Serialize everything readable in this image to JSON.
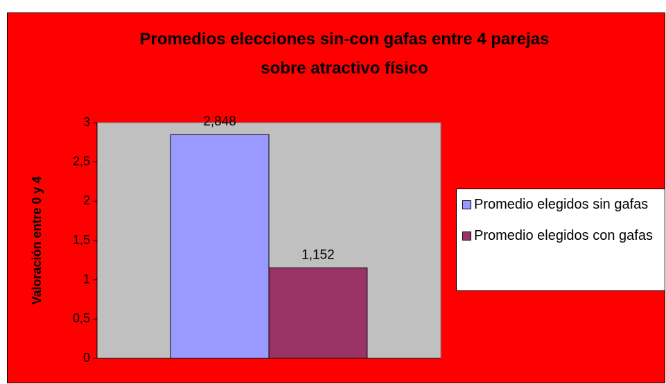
{
  "chart_data": {
    "type": "bar",
    "title": "Promedios elecciones sin-con gafas entre 4 parejas sobre atractivo físico",
    "y_label": "Valoración entre 0 y 4",
    "categories": [
      null
    ],
    "series": [
      {
        "name": "Promedio elegidos sin gafas",
        "color": "#9999ff",
        "values": [
          2.848
        ],
        "value_labels": [
          "2,848"
        ]
      },
      {
        "name": "Promedio elegidos con gafas",
        "color": "#993366",
        "values": [
          1.152
        ],
        "value_labels": [
          "1,152"
        ]
      }
    ],
    "ylim": [
      0,
      3
    ],
    "yticks": [
      0,
      {
        "value": 0.5,
        "label": "0,5"
      },
      1,
      {
        "value": 1.5,
        "label": "1,5"
      },
      2,
      {
        "value": 2.5,
        "label": "2,5"
      },
      3
    ],
    "grid": false,
    "legend": "right",
    "plot_color": "#c0c0c0",
    "background": "#ff0000"
  }
}
